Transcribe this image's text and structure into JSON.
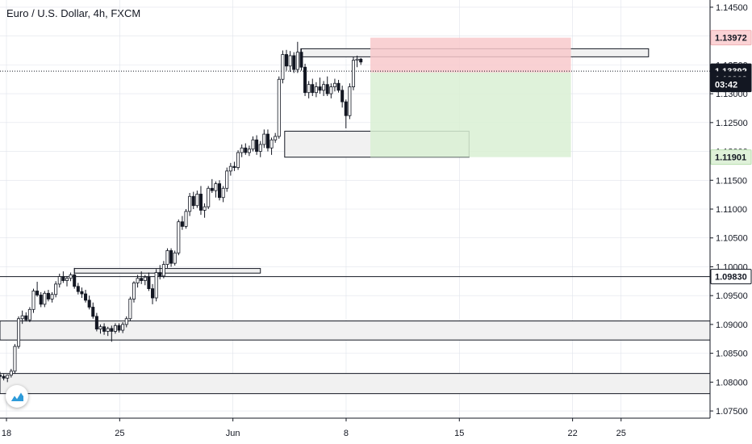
{
  "header": {
    "title": "Euro / U.S. Dollar, 4h, FXCM"
  },
  "colors": {
    "bull": "#ffffff",
    "bear": "#131722",
    "wick": "#131722",
    "grid": "#e0e3eb",
    "loss_zone": "#f8c9cb",
    "profit_zone": "#d9f0d3",
    "zone_fill": "#f1f1f1",
    "current_tag": "#131722",
    "tp_tag": "#dff1d9",
    "sl_tag": "#fbd3d5"
  },
  "chart_data": {
    "type": "candlestick",
    "symbol": "Euro / U.S. Dollar, 4h, FXCM",
    "y_axis": {
      "min": 1.07375,
      "max": 1.14625,
      "ticks": [
        "1.14500",
        "1.14000",
        "1.13500",
        "1.13000",
        "1.12500",
        "1.12000",
        "1.11500",
        "1.11000",
        "1.10500",
        "1.10000",
        "1.09500",
        "1.09000",
        "1.08500",
        "1.08000",
        "1.07500"
      ]
    },
    "x_axis": {
      "labels": [
        {
          "label": "18",
          "day": 18
        },
        {
          "label": "25",
          "day": 25
        },
        {
          "label": "Jun",
          "day": 32
        },
        {
          "label": "8",
          "day": 39
        },
        {
          "label": "15",
          "day": 46
        },
        {
          "label": "22",
          "day": 53
        },
        {
          "label": "25",
          "day": 56
        }
      ],
      "day_range": [
        17.6,
        61.5
      ]
    },
    "price_tags": [
      {
        "label": "1.13972",
        "value": 1.13972,
        "style": "sl"
      },
      {
        "label": "1.13392",
        "value": 1.13392,
        "style": "current"
      },
      {
        "label": "1.13368",
        "value": 1.13368,
        "style": "current"
      },
      {
        "label": "03:42",
        "value": 1.1316,
        "style": "countdown"
      },
      {
        "label": "1.11901",
        "value": 1.11901,
        "style": "tp"
      },
      {
        "label": "1.09830",
        "value": 1.0983,
        "style": "level"
      }
    ],
    "levels": [
      {
        "value": 1.13392,
        "style": "dotted"
      },
      {
        "value": 1.0983,
        "style": "solid"
      }
    ],
    "zones": [
      {
        "from_day": 17.6,
        "to_day": 61.5,
        "low": 1.0873,
        "high": 1.0906
      },
      {
        "from_day": 17.6,
        "to_day": 61.5,
        "low": 1.078,
        "high": 1.0815
      },
      {
        "from_day": 22.2,
        "to_day": 33.7,
        "low": 1.0989,
        "high": 1.0997
      },
      {
        "from_day": 35.2,
        "to_day": 46.6,
        "low": 1.119,
        "high": 1.1235
      },
      {
        "from_day": 36.2,
        "to_day": 57.7,
        "low": 1.1364,
        "high": 1.1378
      }
    ],
    "position": {
      "from_day": 40.5,
      "to_day": 52.9,
      "entry": 1.13368,
      "stop": 1.13972,
      "target": 1.11901
    },
    "candles": [
      [
        1.0812,
        1.0818,
        1.0806,
        1.081
      ],
      [
        1.081,
        1.0814,
        1.0803,
        1.0807
      ],
      [
        1.0807,
        1.0813,
        1.08,
        1.0812
      ],
      [
        1.0812,
        1.0823,
        1.0808,
        1.0819
      ],
      [
        1.0819,
        1.0866,
        1.0815,
        1.0862
      ],
      [
        1.0862,
        1.0914,
        1.0858,
        1.091
      ],
      [
        1.091,
        1.0924,
        1.0901,
        1.0915
      ],
      [
        1.0915,
        1.0921,
        1.0905,
        1.0908
      ],
      [
        1.0908,
        1.093,
        1.0904,
        1.0926
      ],
      [
        1.0926,
        1.0962,
        1.092,
        1.0958
      ],
      [
        1.0958,
        1.0974,
        1.0948,
        1.0951
      ],
      [
        1.0951,
        1.0956,
        1.093,
        1.0935
      ],
      [
        1.0935,
        1.0958,
        1.093,
        1.0954
      ],
      [
        1.0954,
        1.096,
        1.094,
        1.0944
      ],
      [
        1.0944,
        1.0956,
        1.0938,
        1.0952
      ],
      [
        1.0952,
        1.0975,
        1.0947,
        1.097
      ],
      [
        1.097,
        1.0988,
        1.0964,
        1.0983
      ],
      [
        1.0983,
        1.0992,
        1.0972,
        1.0976
      ],
      [
        1.0976,
        1.0984,
        1.0966,
        1.098
      ],
      [
        1.098,
        1.099,
        1.0975,
        1.0986
      ],
      [
        1.0986,
        1.0998,
        1.0962,
        1.0966
      ],
      [
        1.0966,
        1.0972,
        1.0952,
        1.0957
      ],
      [
        1.0957,
        1.0964,
        1.0946,
        1.0953
      ],
      [
        1.0953,
        1.096,
        1.0938,
        1.0942
      ],
      [
        1.0942,
        1.095,
        1.0926,
        1.093
      ],
      [
        1.093,
        1.0938,
        1.091,
        1.0914
      ],
      [
        1.0914,
        1.092,
        1.0888,
        1.0892
      ],
      [
        1.0892,
        1.09,
        1.0884,
        1.0896
      ],
      [
        1.0896,
        1.0902,
        1.0882,
        1.0888
      ],
      [
        1.0888,
        1.0896,
        1.088,
        1.0893
      ],
      [
        1.0893,
        1.0898,
        1.087,
        1.0888
      ],
      [
        1.0888,
        1.0902,
        1.0884,
        1.0898
      ],
      [
        1.0898,
        1.0902,
        1.0886,
        1.089
      ],
      [
        1.089,
        1.0904,
        1.0885,
        1.09
      ],
      [
        1.09,
        1.0914,
        1.0895,
        1.091
      ],
      [
        1.091,
        1.0948,
        1.0906,
        1.0944
      ],
      [
        1.0944,
        1.0975,
        1.0938,
        1.0972
      ],
      [
        1.0972,
        1.0986,
        1.0964,
        1.098
      ],
      [
        1.098,
        1.0992,
        1.097,
        1.0976
      ],
      [
        1.0976,
        1.0986,
        1.0968,
        1.0982
      ],
      [
        1.0982,
        1.099,
        1.0958,
        1.0962
      ],
      [
        1.0962,
        1.097,
        1.0935,
        1.0946
      ],
      [
        1.0946,
        1.0996,
        1.094,
        1.099
      ],
      [
        1.099,
        1.1003,
        1.0978,
        1.0984
      ],
      [
        1.0984,
        1.101,
        1.098,
        1.1004
      ],
      [
        1.1004,
        1.1032,
        1.0998,
        1.1028
      ],
      [
        1.1028,
        1.1032,
        1.1,
        1.1006
      ],
      [
        1.1006,
        1.1028,
        1.1002,
        1.1024
      ],
      [
        1.1024,
        1.1082,
        1.102,
        1.1078
      ],
      [
        1.1078,
        1.1088,
        1.1064,
        1.107
      ],
      [
        1.107,
        1.11,
        1.1066,
        1.1096
      ],
      [
        1.1096,
        1.1128,
        1.1088,
        1.1122
      ],
      [
        1.1122,
        1.113,
        1.11,
        1.1106
      ],
      [
        1.1106,
        1.1132,
        1.1102,
        1.1126
      ],
      [
        1.1126,
        1.114,
        1.109,
        1.1098
      ],
      [
        1.1098,
        1.111,
        1.1085,
        1.1104
      ],
      [
        1.1104,
        1.114,
        1.11,
        1.1136
      ],
      [
        1.1136,
        1.1152,
        1.1128,
        1.1132
      ],
      [
        1.1132,
        1.1148,
        1.112,
        1.1144
      ],
      [
        1.1144,
        1.115,
        1.1115,
        1.112
      ],
      [
        1.112,
        1.114,
        1.1112,
        1.1136
      ],
      [
        1.1136,
        1.1172,
        1.113,
        1.1166
      ],
      [
        1.1166,
        1.118,
        1.1158,
        1.1174
      ],
      [
        1.1174,
        1.1182,
        1.1166,
        1.1172
      ],
      [
        1.1172,
        1.1202,
        1.1168,
        1.1198
      ],
      [
        1.1198,
        1.1212,
        1.119,
        1.1206
      ],
      [
        1.1206,
        1.1214,
        1.1194,
        1.1198
      ],
      [
        1.1198,
        1.121,
        1.1192,
        1.1204
      ],
      [
        1.1204,
        1.1226,
        1.12,
        1.122
      ],
      [
        1.122,
        1.1228,
        1.1194,
        1.12
      ],
      [
        1.12,
        1.1218,
        1.119,
        1.1212
      ],
      [
        1.1212,
        1.1238,
        1.1206,
        1.123
      ],
      [
        1.123,
        1.1238,
        1.12,
        1.1206
      ],
      [
        1.1206,
        1.1224,
        1.1194,
        1.122
      ],
      [
        1.122,
        1.1232,
        1.1215,
        1.1226
      ],
      [
        1.1226,
        1.133,
        1.1222,
        1.1325
      ],
      [
        1.1325,
        1.1375,
        1.1318,
        1.1368
      ],
      [
        1.1368,
        1.1376,
        1.134,
        1.1348
      ],
      [
        1.1348,
        1.1374,
        1.1338,
        1.1366
      ],
      [
        1.1366,
        1.1372,
        1.1336,
        1.1342
      ],
      [
        1.1342,
        1.139,
        1.1336,
        1.1372
      ],
      [
        1.1372,
        1.1378,
        1.134,
        1.1346
      ],
      [
        1.1346,
        1.1352,
        1.1296,
        1.1302
      ],
      [
        1.1302,
        1.1322,
        1.1292,
        1.1316
      ],
      [
        1.1316,
        1.1326,
        1.1296,
        1.1302
      ],
      [
        1.1302,
        1.132,
        1.1294,
        1.1312
      ],
      [
        1.1312,
        1.1328,
        1.13,
        1.1306
      ],
      [
        1.1306,
        1.1322,
        1.1296,
        1.1316
      ],
      [
        1.1316,
        1.133,
        1.1296,
        1.13
      ],
      [
        1.13,
        1.1318,
        1.1292,
        1.1312
      ],
      [
        1.1312,
        1.1326,
        1.1304,
        1.1318
      ],
      [
        1.1318,
        1.1324,
        1.1302,
        1.1306
      ],
      [
        1.1306,
        1.1314,
        1.1276,
        1.1286
      ],
      [
        1.1286,
        1.129,
        1.124,
        1.1262
      ],
      [
        1.1262,
        1.1318,
        1.1256,
        1.1312
      ],
      [
        1.1312,
        1.1364,
        1.1306,
        1.1358
      ],
      [
        1.1358,
        1.1366,
        1.1346,
        1.136
      ],
      [
        1.136,
        1.1362,
        1.135,
        1.1355
      ]
    ],
    "candle_start_day": 17.6,
    "candle_step_day": 0.23
  }
}
